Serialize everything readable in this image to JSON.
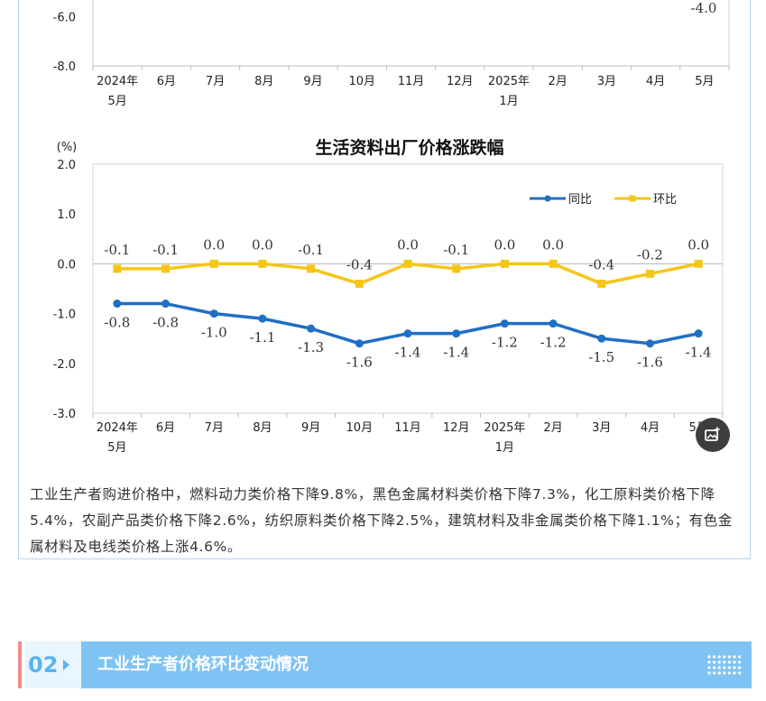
{
  "chart_data": [
    {
      "type": "line",
      "title": "",
      "ylim": [
        -8.0,
        -4.0
      ],
      "y_ticks": [
        "-6.0",
        "-8.0"
      ],
      "categories": [
        "2024年\n5月",
        "6月",
        "7月",
        "8月",
        "9月",
        "10月",
        "11月",
        "12月",
        "2025年\n1月",
        "2月",
        "3月",
        "4月",
        "5月"
      ],
      "annotations": [
        "-4.0"
      ]
    },
    {
      "type": "line",
      "title": "生活资料出厂价格涨跌幅",
      "unit": "(%)",
      "ylim": [
        -3.0,
        2.0
      ],
      "y_ticks": [
        "2.0",
        "1.0",
        "0.0",
        "-1.0",
        "-2.0",
        "-3.0"
      ],
      "grid": false,
      "legend_position": "top-right",
      "categories": [
        "2024年\n5月",
        "6月",
        "7月",
        "8月",
        "9月",
        "10月",
        "11月",
        "12月",
        "2025年\n1月",
        "2月",
        "3月",
        "4月",
        "5月"
      ],
      "series": [
        {
          "name": "同比",
          "color": "#1f6fc5",
          "values": [
            -0.8,
            -0.8,
            -1.0,
            -1.1,
            -1.3,
            -1.6,
            -1.4,
            -1.4,
            -1.2,
            -1.2,
            -1.5,
            -1.6,
            -1.4
          ],
          "labels": [
            "-0.8",
            "-0.8",
            "-1.0",
            "-1.1",
            "-1.3",
            "-1.6",
            "-1.4",
            "-1.4",
            "-1.2",
            "-1.2",
            "-1.5",
            "-1.6",
            "-1.4"
          ]
        },
        {
          "name": "环比",
          "color": "#f5c518",
          "values": [
            -0.1,
            -0.1,
            0.0,
            0.0,
            -0.1,
            -0.4,
            0.0,
            -0.1,
            0.0,
            0.0,
            -0.4,
            -0.2,
            0.0
          ],
          "labels": [
            "-0.1",
            "-0.1",
            "0.0",
            "0.0",
            "-0.1",
            "-0.4",
            "0.0",
            "-0.1",
            "0.0",
            "0.0",
            "-0.4",
            "-0.2",
            "0.0"
          ]
        }
      ]
    }
  ],
  "paragraph": "工业生产者购进价格中，燃料动力类价格下降9.8%，黑色金属材料类价格下降7.3%，化工原料类价格下降5.4%，农副产品类价格下降2.6%，纺织原料类价格下降2.5%，建筑材料及非金属类价格下降1.1%；有色金属材料及电线类价格上涨4.6%。",
  "section": {
    "number": "02",
    "title": "工业生产者价格环比变动情况"
  },
  "fab": {
    "icon": "image-add-icon"
  }
}
